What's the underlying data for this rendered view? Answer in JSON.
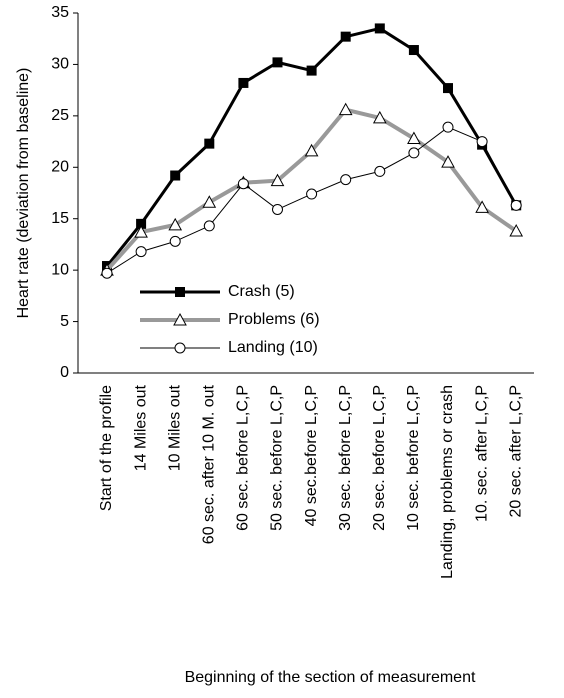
{
  "chart_data": {
    "type": "line",
    "y_label": "Heart rate (deviation from baseline)",
    "x_label": "Beginning of the section of measurement",
    "categories": [
      "Start of the profile",
      "14 Miles out",
      "10 Miles out",
      "60 sec. after 10 M. out",
      "60 sec. before L,C,P",
      "50 sec. before L,C,P",
      "40 sec.before L,C,P",
      "30 sec. before L,C,P",
      "20 sec. before L,C,P",
      "10 sec. before L,C,P",
      "Landing, problems or crash",
      "10. sec. after L,C,P",
      "20 sec. after L,C,P"
    ],
    "series": [
      {
        "name": "Crash (5)",
        "color": "#000000",
        "marker": "square",
        "line_width": 3,
        "values": [
          10.4,
          14.5,
          19.2,
          22.3,
          28.2,
          30.2,
          29.4,
          32.7,
          33.5,
          31.4,
          27.7,
          22.2,
          16.3
        ]
      },
      {
        "name": "Problems (6)",
        "color": "#999999",
        "marker": "triangle",
        "line_width": 4,
        "values": [
          10.0,
          13.7,
          14.4,
          16.6,
          18.5,
          18.7,
          21.6,
          25.6,
          24.8,
          22.8,
          20.5,
          16.1,
          13.8
        ]
      },
      {
        "name": "Landing (10)",
        "color": "#000000",
        "marker": "circle",
        "line_width": 1,
        "values": [
          9.7,
          11.8,
          12.8,
          14.3,
          18.4,
          15.9,
          17.4,
          18.8,
          19.6,
          21.4,
          23.9,
          22.5,
          16.3
        ]
      }
    ],
    "ylim": [
      0,
      35
    ],
    "yticks": [
      0,
      5,
      10,
      15,
      20,
      25,
      30,
      35
    ],
    "grid": false,
    "legend": "lower left"
  }
}
